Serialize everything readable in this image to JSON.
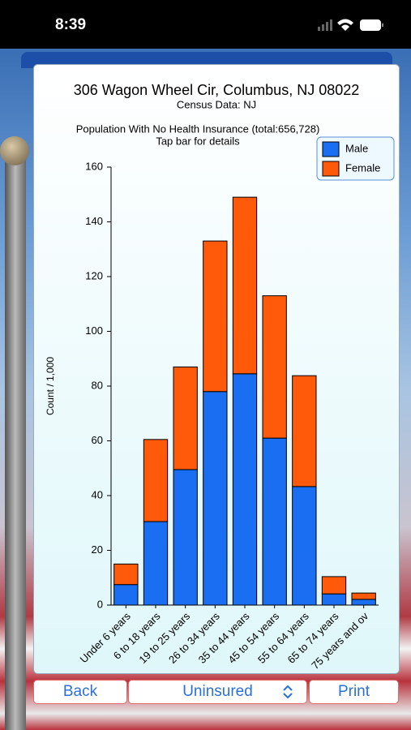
{
  "status_bar": {
    "time": "8:39"
  },
  "chart_data": {
    "type": "bar",
    "stacked": true,
    "title": "306 Wagon Wheel Cir, Columbus, NJ 08022",
    "subtitle": "Census Data: NJ",
    "chart_title": "Population With No Health Insurance (total:656,728)",
    "hint": "Tap bar for details",
    "y_label": "Count / 1,000",
    "categories": [
      "Under 6 years",
      "6 to 18 years",
      "19 to 25 years",
      "26 to 34 years",
      "35 to 44 years",
      "45 to 54 years",
      "55 to 64 years",
      "65 to 74 years",
      "75 years and ov"
    ],
    "series": [
      {
        "name": "Male",
        "color": "#1a6ef2",
        "values": [
          7.5,
          30.5,
          49.5,
          78,
          84.5,
          61,
          43.3,
          4.1,
          2.1
        ]
      },
      {
        "name": "Female",
        "color": "#ff5a0a",
        "values": [
          7.5,
          30,
          37.5,
          55,
          64.5,
          52,
          40.5,
          6.3,
          2.3
        ]
      }
    ],
    "ylim": [
      0,
      160
    ],
    "yticks": [
      0,
      20,
      40,
      60,
      80,
      100,
      120,
      140,
      160
    ],
    "grid": false,
    "legend": "top-right"
  },
  "buttons": {
    "back": "Back",
    "selector": "Uninsured",
    "print": "Print"
  }
}
